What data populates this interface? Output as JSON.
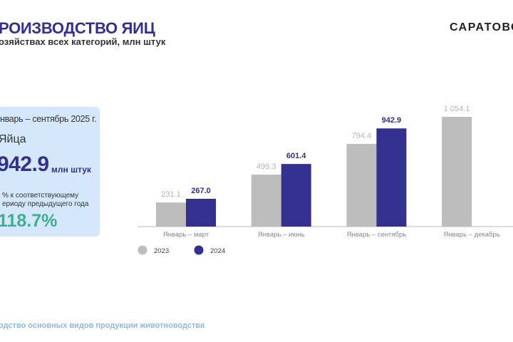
{
  "header": {
    "title": "РОИЗВОДСТВО ЯИЦ",
    "subtitle": "озяйствах всех категорий, млн штук",
    "logo_text": "САРАТОВС"
  },
  "card": {
    "period": "нварь – сентябрь 2025 г.",
    "product": "Яйца",
    "value": "942.9",
    "unit": "млн штук",
    "comparison_line1": "% к соответствующему",
    "comparison_line2": "ериоду предыдущего года",
    "percent": "118.7%"
  },
  "footer": {
    "text": "одство основных видов продукции животноводства"
  },
  "colors": {
    "series_2023": "#bdbdbd",
    "series_2024": "#33308f",
    "accent_green": "#3cb08f"
  },
  "chart_data": {
    "type": "bar",
    "categories": [
      "Январь – март",
      "Январь – июнь",
      "Январь – сентябрь",
      "Январь – декабрь"
    ],
    "series": [
      {
        "name": "2023",
        "values": [
          231.1,
          499.3,
          794.4,
          1054.1
        ],
        "labels": [
          "231.1",
          "499.3",
          "794.4",
          "1 054.1"
        ]
      },
      {
        "name": "2024",
        "values": [
          267.0,
          601.4,
          942.9,
          null
        ],
        "labels": [
          "267.0",
          "601.4",
          "942.9",
          null
        ]
      }
    ],
    "legend_position": "bottom-left",
    "ylim": [
      0,
      1054.1
    ],
    "grid": false
  }
}
